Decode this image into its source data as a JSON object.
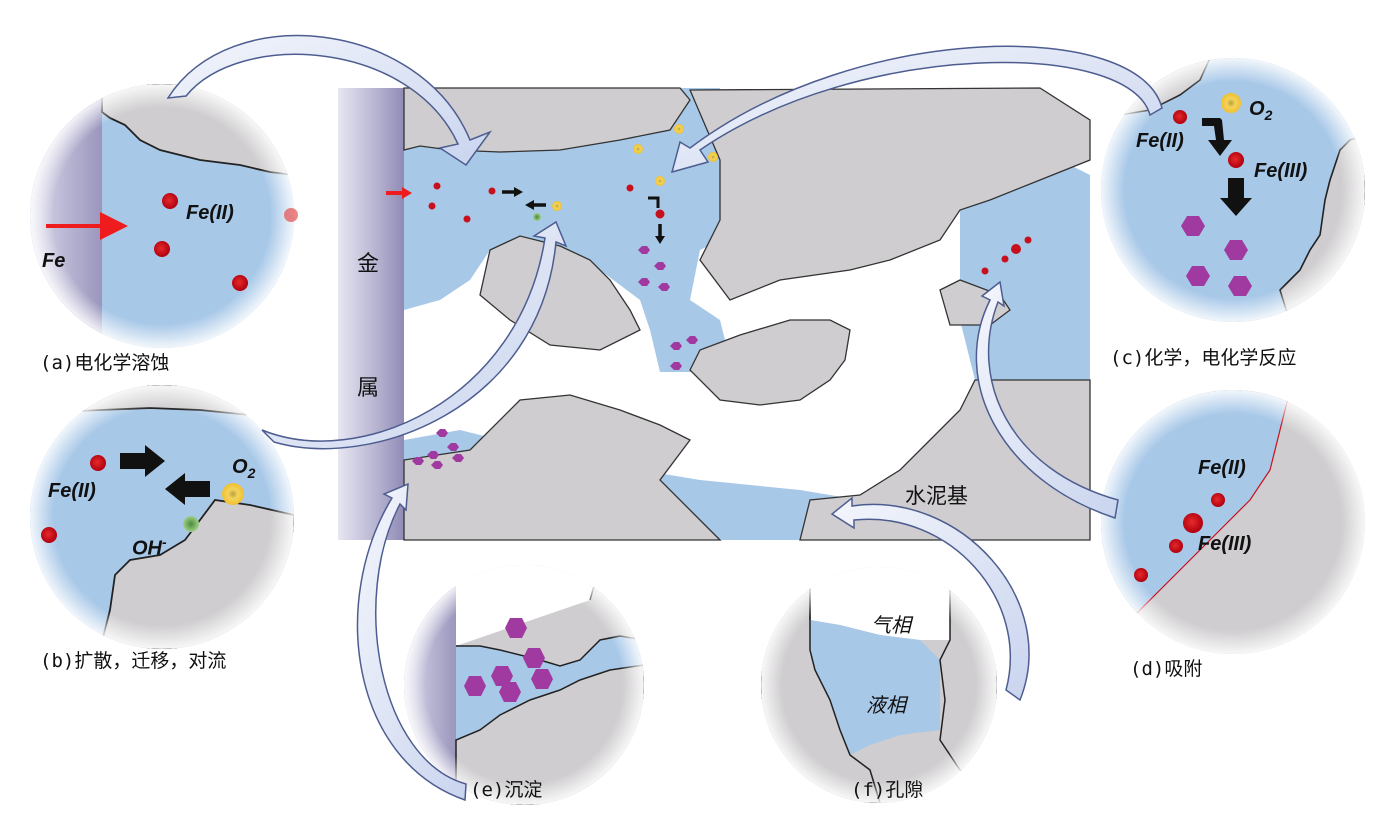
{
  "center": {
    "metal_label_1": "金",
    "metal_label_2": "属",
    "matrix_label": "水泥基"
  },
  "panels": {
    "a": {
      "caption": "(a)电化学溶蚀",
      "fe": "Fe",
      "fe2": "Fe(II)"
    },
    "b": {
      "caption": "(b)扩散，迁移，对流",
      "fe2": "Fe(II)",
      "o2": "O2",
      "oh": "OH-"
    },
    "c": {
      "caption": "(c)化学，电化学反应",
      "fe2": "Fe(II)",
      "o2": "O2",
      "fe3": "Fe(III)"
    },
    "d": {
      "caption": "(d)吸附",
      "fe2": "Fe(II)",
      "fe3": "Fe(III)"
    },
    "e": {
      "caption": "(e)沉淀"
    },
    "f": {
      "caption": "(f)孔隙",
      "gas": "气相",
      "liquid": "液相"
    }
  },
  "colors": {
    "solution": "#a8c8e8",
    "matrix": "#cfcdcf",
    "metal": "#a9a6c8",
    "fe_ion": "#d0101c",
    "o2": "#f0c030",
    "oh": "#6aa85a",
    "precipitate": "#a03aa0",
    "arrow_fill": "#dfe6f6",
    "arrow_edge": "#5a6a9a"
  }
}
